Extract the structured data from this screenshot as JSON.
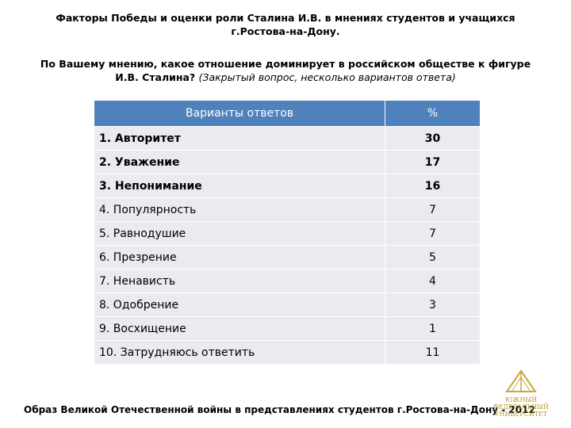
{
  "header": {
    "title": "Факторы Победы  и  оценки  роли Сталина И.В. в мнениях студентов и учащихся г.Ростова-на-Дону.",
    "question": "По Вашему мнению, какое отношение доминирует в российском обществе к фигуре И.В. Сталина?",
    "question_note": "(Закрытый вопрос, несколько вариантов ответа)"
  },
  "table": {
    "columns": [
      "Варианты ответов",
      "%"
    ],
    "rows": [
      {
        "answer": "1. Авторитет",
        "percent": 30,
        "bold": true
      },
      {
        "answer": "2. Уважение",
        "percent": 17,
        "bold": true
      },
      {
        "answer": "3. Непонимание",
        "percent": 16,
        "bold": true
      },
      {
        "answer": "4. Популярность",
        "percent": 7,
        "bold": false
      },
      {
        "answer": "5. Равнодушие",
        "percent": 7,
        "bold": false
      },
      {
        "answer": "6. Презрение",
        "percent": 5,
        "bold": false
      },
      {
        "answer": "7. Ненависть",
        "percent": 4,
        "bold": false
      },
      {
        "answer": "8. Одобрение",
        "percent": 3,
        "bold": false
      },
      {
        "answer": "9. Восхищение",
        "percent": 1,
        "bold": false
      },
      {
        "answer": "10. Затрудняюсь ответить",
        "percent": 11,
        "bold": false
      }
    ]
  },
  "footer": {
    "text": "Образ Великой Отечественной войны в представлениях студентов г.Ростова-на-Дону - 2012"
  },
  "logo": {
    "lines": [
      "ЮЖНЫЙ",
      "ФЕДЕРАЛЬНЫЙ",
      "УНИВЕРСИТЕТ"
    ]
  }
}
